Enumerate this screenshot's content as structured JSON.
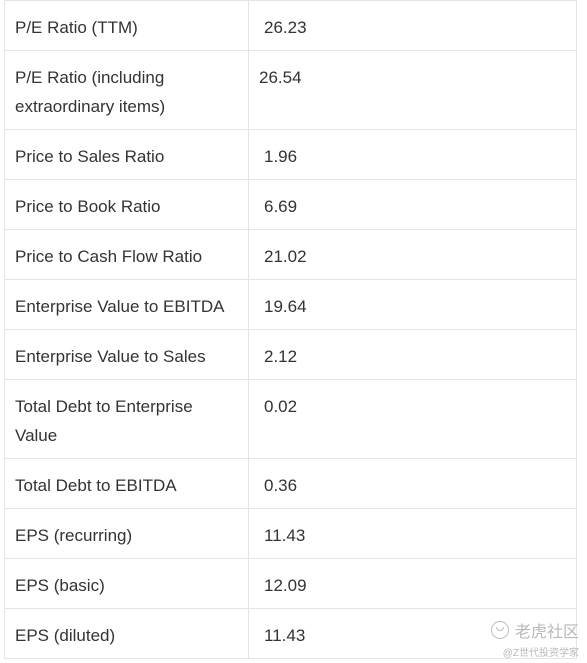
{
  "rows": [
    {
      "label": "P/E Ratio (TTM)",
      "value": "26.23"
    },
    {
      "label": "P/E Ratio (including extraordinary items)",
      "value": "26.54"
    },
    {
      "label": "Price to Sales Ratio",
      "value": "1.96"
    },
    {
      "label": "Price to Book Ratio",
      "value": "6.69"
    },
    {
      "label": "Price to Cash Flow Ratio",
      "value": "21.02"
    },
    {
      "label": "Enterprise Value to EBITDA",
      "value": "19.64"
    },
    {
      "label": "Enterprise Value to Sales",
      "value": "2.12"
    },
    {
      "label": "Total Debt to Enterprise Value",
      "value": "0.02"
    },
    {
      "label": "Total Debt to EBITDA",
      "value": "0.36"
    },
    {
      "label": "EPS (recurring)",
      "value": "11.43"
    },
    {
      "label": "EPS (basic)",
      "value": "12.09"
    },
    {
      "label": "EPS (diluted)",
      "value": "11.43"
    }
  ],
  "watermark": {
    "brand": "老虎社区",
    "sub": "@Z世代投资学家",
    "logo_icon": "tiger-logo-icon"
  },
  "colors": {
    "border": "#e4e4e4",
    "text": "#333333",
    "watermark": "#b9b9b9"
  }
}
